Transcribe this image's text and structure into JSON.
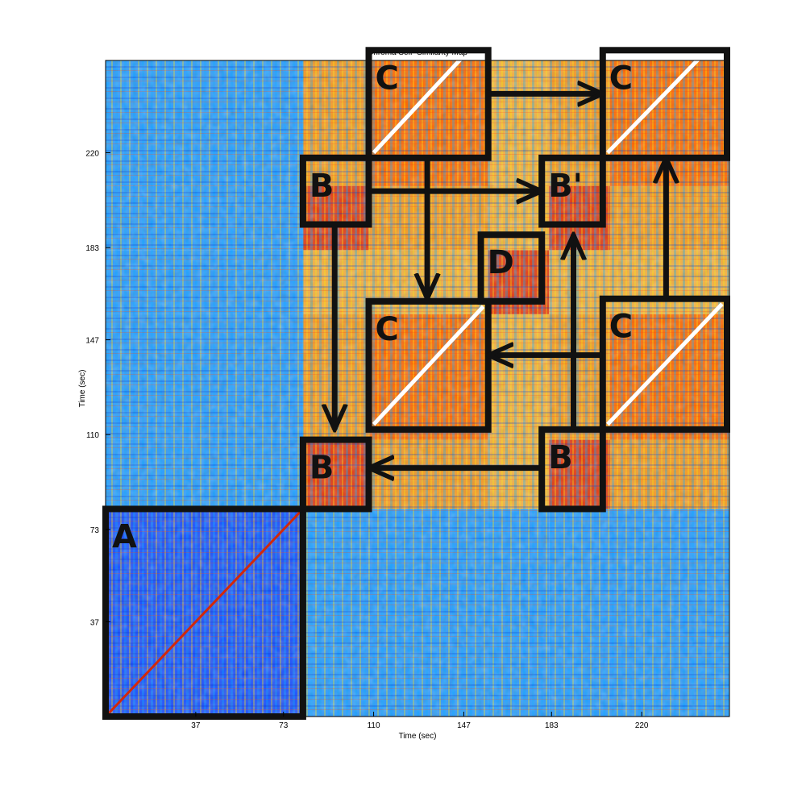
{
  "chart_data": {
    "type": "heatmap",
    "title": "Chroma Self–Similarity Map",
    "xlabel": "Time (sec)",
    "ylabel": "Time (sec)",
    "xlim": [
      0,
      256
    ],
    "ylim": [
      0,
      256
    ],
    "x_ticks": [
      37,
      73,
      110,
      147,
      183,
      220
    ],
    "y_ticks": [
      37,
      73,
      110,
      147,
      183,
      220
    ],
    "colormap": "jet",
    "colors": {
      "low": "#00008f",
      "mid_low": "#1ea0ff",
      "mid": "#f5ea1e",
      "mid_high": "#ff6a00",
      "high": "#c80000",
      "annotation": "#111111",
      "diagonal_highlight": "#ffffff"
    },
    "sections": [
      {
        "label": "A",
        "start": 0,
        "end": 81
      },
      {
        "label": "B",
        "start": 81,
        "end": 108
      },
      {
        "label": "C",
        "start": 108,
        "end": 157
      },
      {
        "label": "D",
        "start": 157,
        "end": 182
      },
      {
        "label": "B'",
        "start": 182,
        "end": 207
      },
      {
        "label": "C",
        "start": 207,
        "end": 256
      }
    ],
    "annotations": [
      {
        "label": "A",
        "x0": 0,
        "x1": 81,
        "y0": 0,
        "y1": 81
      },
      {
        "label": "B",
        "x0": 81,
        "x1": 108,
        "y0": 81,
        "y1": 108
      },
      {
        "label": "B",
        "x0": 179,
        "x1": 204,
        "y0": 81,
        "y1": 112
      },
      {
        "label": "B",
        "x0": 81,
        "x1": 108,
        "y0": 192,
        "y1": 218
      },
      {
        "label": "B'",
        "x0": 179,
        "x1": 204,
        "y0": 192,
        "y1": 218
      },
      {
        "label": "C",
        "x0": 108,
        "x1": 157,
        "y0": 112,
        "y1": 162
      },
      {
        "label": "C",
        "x0": 204,
        "x1": 255,
        "y0": 112,
        "y1": 163
      },
      {
        "label": "C",
        "x0": 108,
        "x1": 157,
        "y0": 218,
        "y1": 268
      },
      {
        "label": "C",
        "x0": 204,
        "x1": 255,
        "y0": 218,
        "y1": 268
      },
      {
        "label": "D",
        "x0": 154,
        "x1": 179,
        "y0": 162,
        "y1": 188
      }
    ],
    "arrows": [
      {
        "from": [
          157,
          243
        ],
        "to": [
          204,
          243
        ]
      },
      {
        "from": [
          108,
          205
        ],
        "to": [
          179,
          205
        ]
      },
      {
        "from": [
          132,
          218
        ],
        "to": [
          132,
          163
        ]
      },
      {
        "from": [
          94,
          192
        ],
        "to": [
          94,
          112
        ]
      },
      {
        "from": [
          179,
          97
        ],
        "to": [
          108,
          97
        ]
      },
      {
        "from": [
          192,
          112
        ],
        "to": [
          192,
          188
        ]
      },
      {
        "from": [
          204,
          141
        ],
        "to": [
          157,
          141
        ]
      },
      {
        "from": [
          230,
          163
        ],
        "to": [
          230,
          218
        ]
      }
    ]
  }
}
